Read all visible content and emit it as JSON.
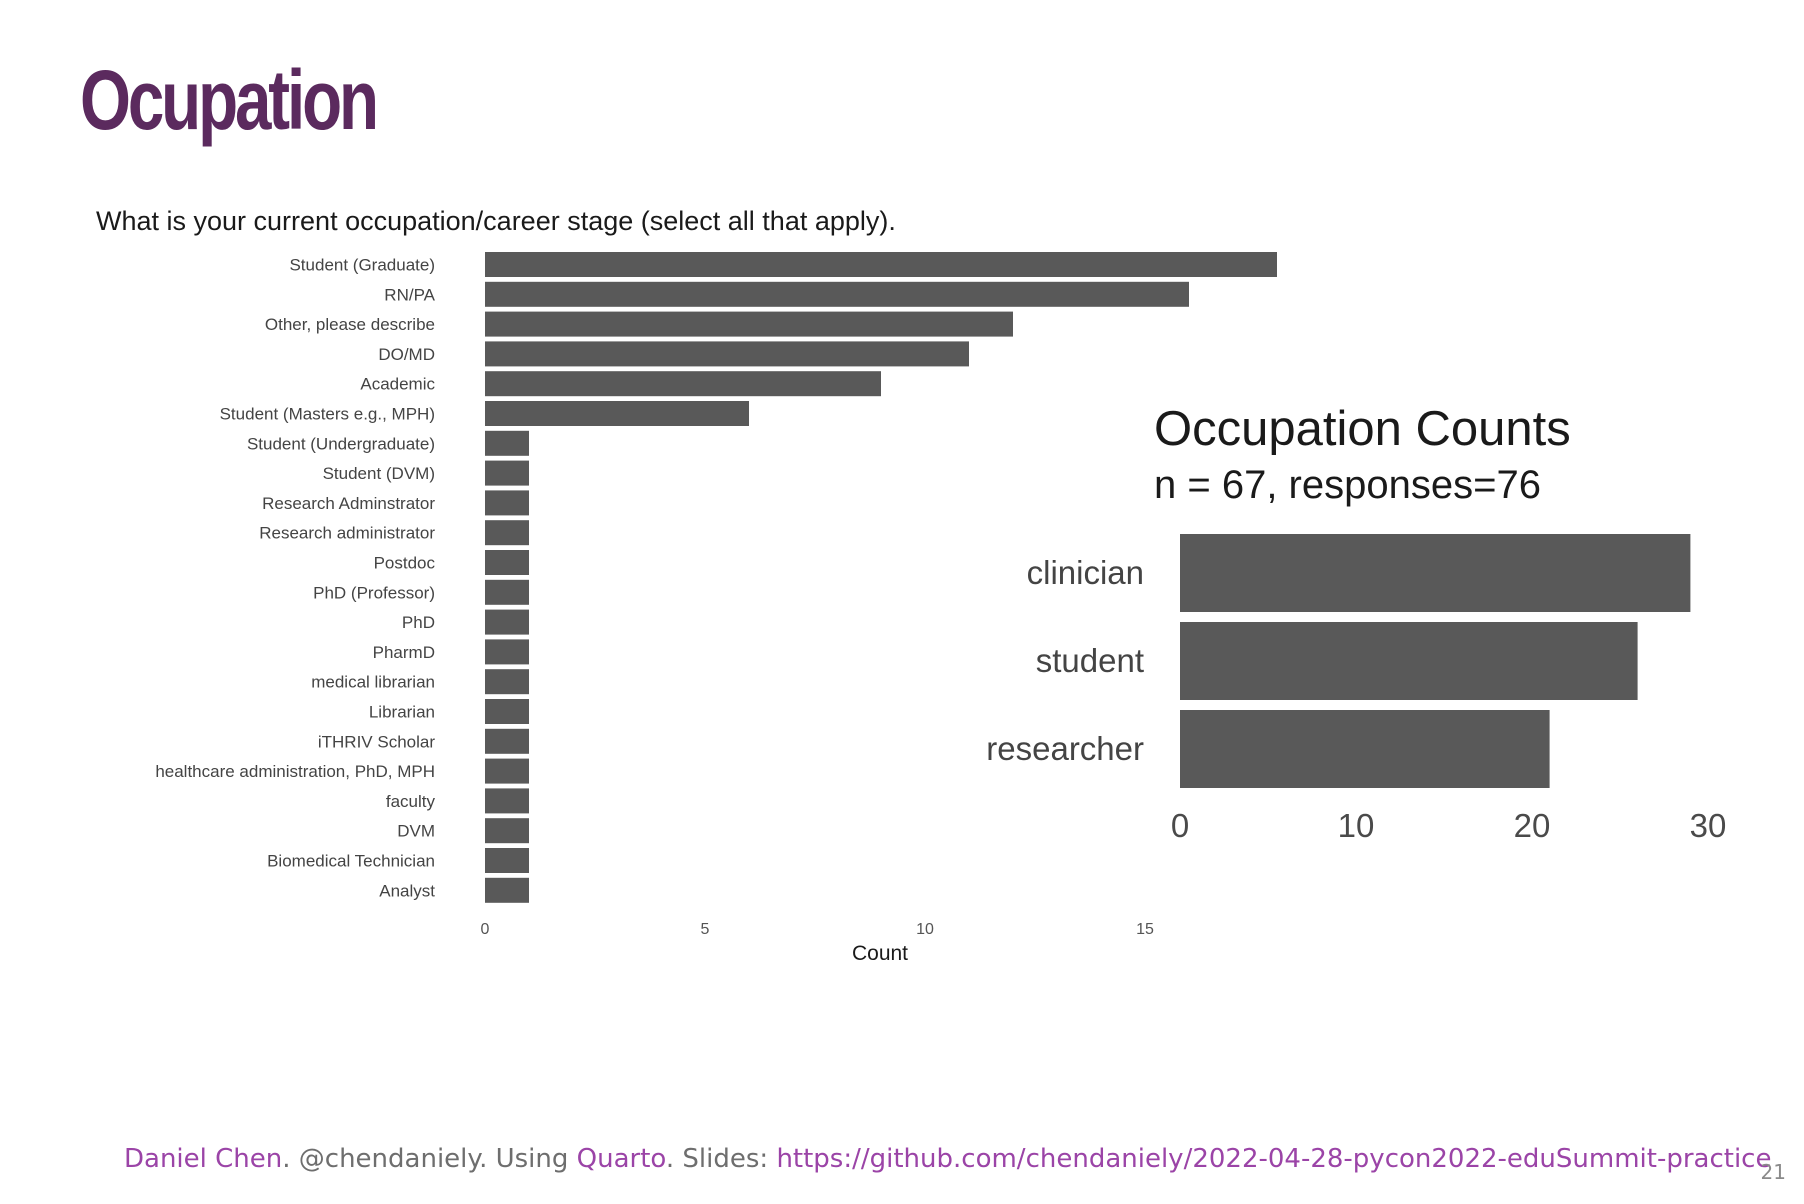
{
  "slide": {
    "title": "Ocupation",
    "page_number": "21"
  },
  "footer": {
    "author": "Daniel Chen",
    "sep1": ". @chendaniely. Using ",
    "tool": "Quarto",
    "sep2": ". Slides: ",
    "url": "https://github.com/chendaniely/2022-04-28-pycon2022-eduSummit-practice"
  },
  "colors": {
    "bar": "#595959",
    "title": "#5b2a5e",
    "link": "#9b44a7"
  },
  "chart_data": [
    {
      "type": "bar",
      "orientation": "horizontal",
      "title": "What is your current occupation/career stage (select all that apply).",
      "xlabel": "Count",
      "ylabel": "",
      "xlim": [
        0,
        18
      ],
      "xticks": [
        0,
        5,
        10,
        15
      ],
      "grid": false,
      "categories": [
        "Student (Graduate)",
        "RN/PA",
        "Other, please describe",
        "DO/MD",
        "Academic",
        "Student (Masters e.g., MPH)",
        "Student (Undergraduate)",
        "Student (DVM)",
        "Research Adminstrator",
        "Research administrator",
        "Postdoc",
        "PhD (Professor)",
        "PhD",
        "PharmD",
        "medical librarian",
        "Librarian",
        "iTHRIV Scholar",
        "healthcare administration, PhD, MPH",
        "faculty",
        "DVM",
        "Biomedical Technician",
        "Analyst"
      ],
      "values": [
        18,
        16,
        12,
        11,
        9,
        6,
        1,
        1,
        1,
        1,
        1,
        1,
        1,
        1,
        1,
        1,
        1,
        1,
        1,
        1,
        1,
        1
      ]
    },
    {
      "type": "bar",
      "orientation": "horizontal",
      "title": "Occupation Counts",
      "subtitle": "n = 67, responses=76",
      "xlabel": "",
      "ylabel": "",
      "xlim": [
        0,
        30
      ],
      "xticks": [
        0,
        10,
        20,
        30
      ],
      "grid": false,
      "categories": [
        "clinician",
        "student",
        "researcher"
      ],
      "values": [
        29,
        26,
        21
      ]
    }
  ]
}
